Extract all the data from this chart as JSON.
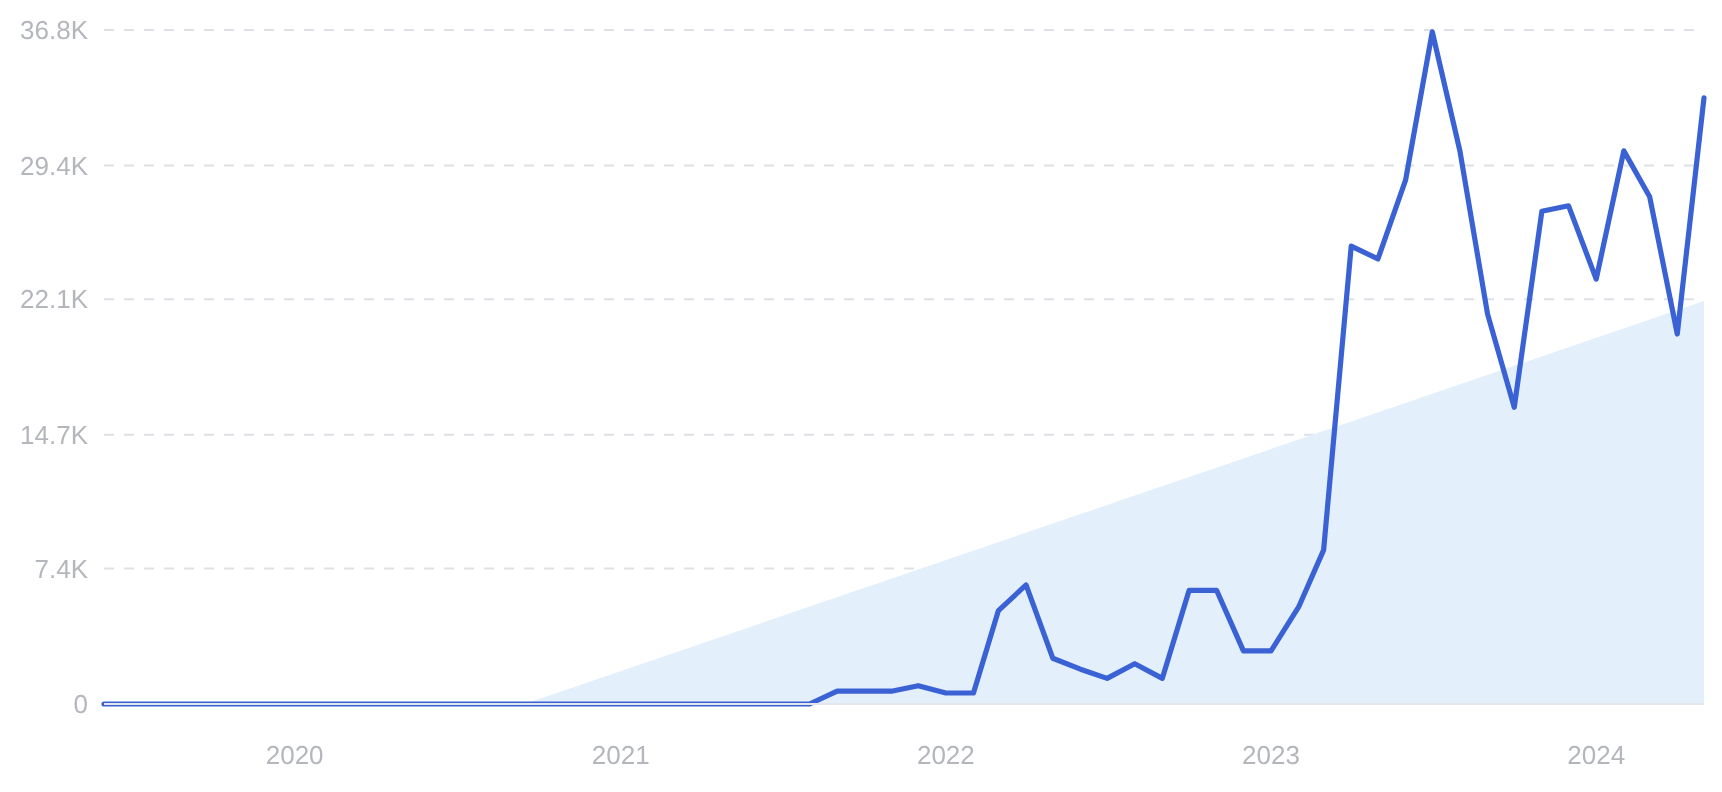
{
  "chart_data": {
    "type": "line",
    "xlim": [
      "2019-06",
      "2024-05"
    ],
    "ylim": [
      0,
      36800
    ],
    "xticks": [
      {
        "value": "2020-01",
        "label": "2020"
      },
      {
        "value": "2021-01",
        "label": "2021"
      },
      {
        "value": "2022-01",
        "label": "2022"
      },
      {
        "value": "2023-01",
        "label": "2023"
      },
      {
        "value": "2024-01",
        "label": "2024"
      }
    ],
    "yticks": [
      0,
      {
        "value": 7400,
        "label": "7.4K"
      },
      {
        "value": 14700,
        "label": "14.7K"
      },
      {
        "value": 22100,
        "label": "22.1K"
      },
      {
        "value": 29400,
        "label": "29.4K"
      },
      {
        "value": 36800,
        "label": "36.8K"
      }
    ],
    "grid": "y",
    "marker": "none",
    "line_style": "solid",
    "series": [
      {
        "type": "area",
        "color": "#e4effc",
        "x": [
          "2020-09-15",
          "2024-05"
        ],
        "values": [
          0,
          22000
        ]
      },
      {
        "color": "#3a62d4",
        "x": [
          "2019-06",
          "2019-07",
          "2019-08",
          "2019-09",
          "2019-10",
          "2019-11",
          "2019-12",
          "2020-01",
          "2020-02",
          "2020-03",
          "2020-04",
          "2020-05",
          "2020-06",
          "2020-07",
          "2020-08",
          "2020-09",
          "2020-10",
          "2020-11",
          "2020-12",
          "2021-01",
          "2021-02",
          "2021-03",
          "2021-04",
          "2021-05",
          "2021-06",
          "2021-07",
          "2021-08",
          "2021-09",
          "2021-10",
          "2021-11",
          "2021-12",
          "2022-01",
          "2022-02",
          "2022-03",
          "2022-04",
          "2022-05",
          "2022-06",
          "2022-07",
          "2022-08",
          "2022-09",
          "2022-10",
          "2022-11",
          "2022-12",
          "2023-01",
          "2023-02",
          "2023-03",
          "2023-04",
          "2023-05",
          "2023-06",
          "2023-07",
          "2023-08",
          "2023-09",
          "2023-10",
          "2023-11",
          "2023-12",
          "2024-01",
          "2024-02",
          "2024-03",
          "2024-04",
          "2024-05"
        ],
        "values": [
          0,
          0,
          0,
          0,
          0,
          0,
          0,
          0,
          0,
          0,
          0,
          0,
          0,
          0,
          0,
          0,
          0,
          0,
          0,
          0,
          0,
          0,
          0,
          0,
          0,
          0,
          0,
          700,
          700,
          700,
          1000,
          600,
          600,
          5100,
          6500,
          2500,
          1900,
          1400,
          2200,
          1400,
          6200,
          6200,
          2900,
          2900,
          5300,
          8400,
          25000,
          24300,
          28600,
          36700,
          30200,
          21300,
          16200,
          26900,
          27200,
          23200,
          30200,
          27700,
          20200,
          33100
        ]
      }
    ]
  }
}
